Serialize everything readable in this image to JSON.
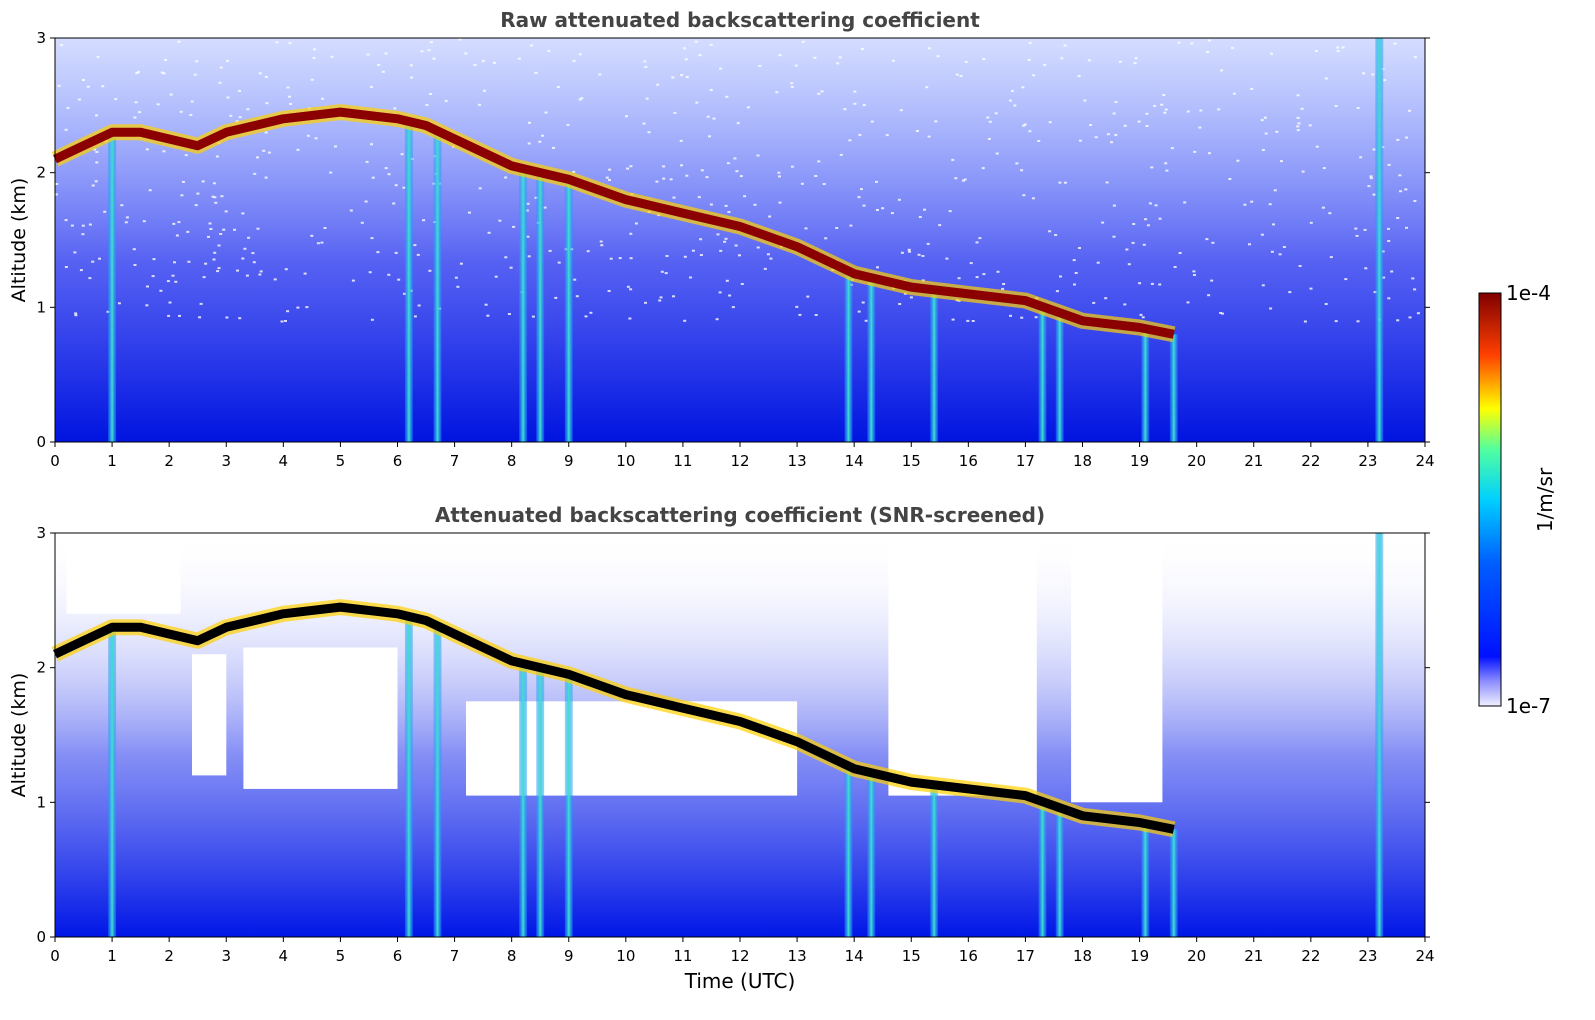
{
  "chart_data": [
    {
      "type": "heatmap",
      "title": "Raw attenuated backscattering coefficient",
      "xlabel": "",
      "ylabel": "Altitude (km)",
      "xlim": [
        0,
        24
      ],
      "ylim": [
        0,
        3
      ],
      "xticks": [
        "0",
        "1",
        "2",
        "3",
        "4",
        "5",
        "6",
        "7",
        "8",
        "9",
        "10",
        "11",
        "12",
        "13",
        "14",
        "15",
        "16",
        "17",
        "18",
        "19",
        "20",
        "21",
        "22",
        "23",
        "24"
      ],
      "yticks": [
        "0",
        "1",
        "2",
        "3"
      ],
      "layer_top_km": {
        "time_utc": [
          0,
          0.5,
          1.0,
          1.5,
          2.5,
          3.0,
          4.0,
          5.0,
          6.0,
          6.5,
          7.0,
          8.0,
          9.0,
          10.0,
          11.0,
          12.0,
          13.0,
          14.0,
          15.0,
          16.0,
          17.0,
          18.0,
          19.0,
          19.6
        ],
        "altitude_km": [
          2.1,
          2.2,
          2.3,
          2.3,
          2.2,
          2.3,
          2.4,
          2.45,
          2.4,
          2.35,
          2.25,
          2.05,
          1.95,
          1.8,
          1.7,
          1.6,
          1.45,
          1.25,
          1.15,
          1.1,
          1.05,
          0.9,
          0.85,
          0.8
        ]
      },
      "precip_streaks_utc": [
        1.0,
        6.2,
        6.7,
        8.2,
        8.5,
        9.0,
        13.9,
        14.3,
        15.4,
        17.3,
        17.6,
        19.1,
        19.6,
        23.2
      ],
      "grid": false
    },
    {
      "type": "heatmap",
      "title": "Attenuated backscattering coefficient (SNR-screened)",
      "xlabel": "Time (UTC)",
      "ylabel": "Altitude (km)",
      "xlim": [
        0,
        24
      ],
      "ylim": [
        0,
        3
      ],
      "xticks": [
        "0",
        "1",
        "2",
        "3",
        "4",
        "5",
        "6",
        "7",
        "8",
        "9",
        "10",
        "11",
        "12",
        "13",
        "14",
        "15",
        "16",
        "17",
        "18",
        "19",
        "20",
        "21",
        "22",
        "23",
        "24"
      ],
      "yticks": [
        "0",
        "1",
        "2",
        "3"
      ],
      "grid": false
    }
  ],
  "colorbar": {
    "label": "1/m/sr",
    "max_label": "1e-4",
    "min_label": "1e-7",
    "scale": "log"
  },
  "colors": {
    "background_noise": "#2233ee",
    "layer": "#8b0000",
    "layer_core_screened": "#000000",
    "streak": "#29b6f6"
  }
}
